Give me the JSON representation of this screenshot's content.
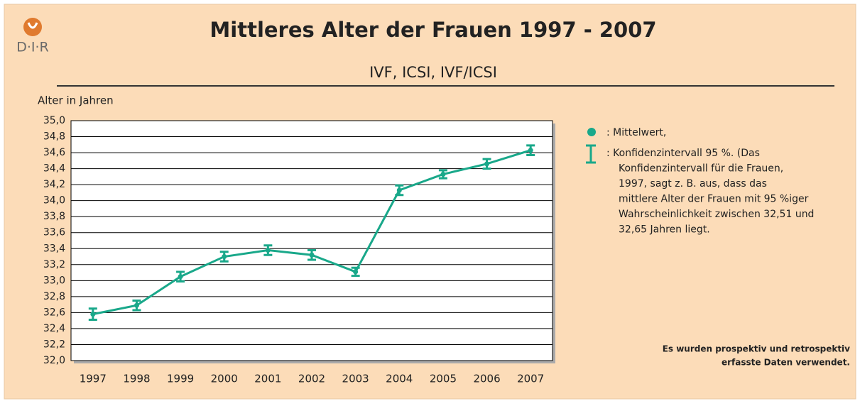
{
  "chart_data": {
    "type": "line",
    "title": "Mittleres Alter der Frauen 1997 - 2007",
    "subtitle": "IVF, ICSI, IVF/ICSI",
    "logo": "D·I·R",
    "y_label": "Alter in Jahren",
    "categories": [
      "1997",
      "1998",
      "1999",
      "2000",
      "2001",
      "2002",
      "2003",
      "2004",
      "2005",
      "2006",
      "2007"
    ],
    "series": [
      {
        "color": "#19a88a",
        "values": [
          32.58,
          32.69,
          33.05,
          33.3,
          33.38,
          33.32,
          33.11,
          34.13,
          34.33,
          34.46,
          34.63
        ],
        "errors": [
          0.07,
          0.06,
          0.06,
          0.06,
          0.06,
          0.06,
          0.05,
          0.06,
          0.05,
          0.06,
          0.06
        ]
      }
    ],
    "ylim": [
      32.0,
      35.0
    ],
    "yticks": [
      {
        "value": 32.0,
        "label": "32,0"
      },
      {
        "value": 32.2,
        "label": "32,2"
      },
      {
        "value": 32.4,
        "label": "32,4"
      },
      {
        "value": 32.6,
        "label": "32,6"
      },
      {
        "value": 32.8,
        "label": "32,8"
      },
      {
        "value": 33.0,
        "label": "33,0"
      },
      {
        "value": 33.2,
        "label": "33,2"
      },
      {
        "value": 33.4,
        "label": "33,4"
      },
      {
        "value": 33.6,
        "label": "33,6"
      },
      {
        "value": 33.8,
        "label": "33,8"
      },
      {
        "value": 34.0,
        "label": "34,0"
      },
      {
        "value": 34.2,
        "label": "34,2"
      },
      {
        "value": 34.4,
        "label": "34,4"
      },
      {
        "value": 34.6,
        "label": "34,6"
      },
      {
        "value": 34.8,
        "label": "34,8"
      },
      {
        "value": 35.0,
        "label": "35,0"
      }
    ],
    "grid": true,
    "legend": {
      "mean": ": Mittelwert,",
      "ci_lines": [
        ": Konfidenzintervall 95 %. (Das",
        "Konfidenzintervall für die Frauen,",
        "1997, sagt z. B. aus, dass das",
        "mittlere Alter der Frauen mit 95 %iger",
        "Wahrscheinlichkeit zwischen 32,51 und",
        "32,65 Jahren liegt."
      ]
    },
    "footnote": [
      "Es wurden prospektiv und retrospektiv",
      "erfasste Daten verwendet."
    ]
  }
}
